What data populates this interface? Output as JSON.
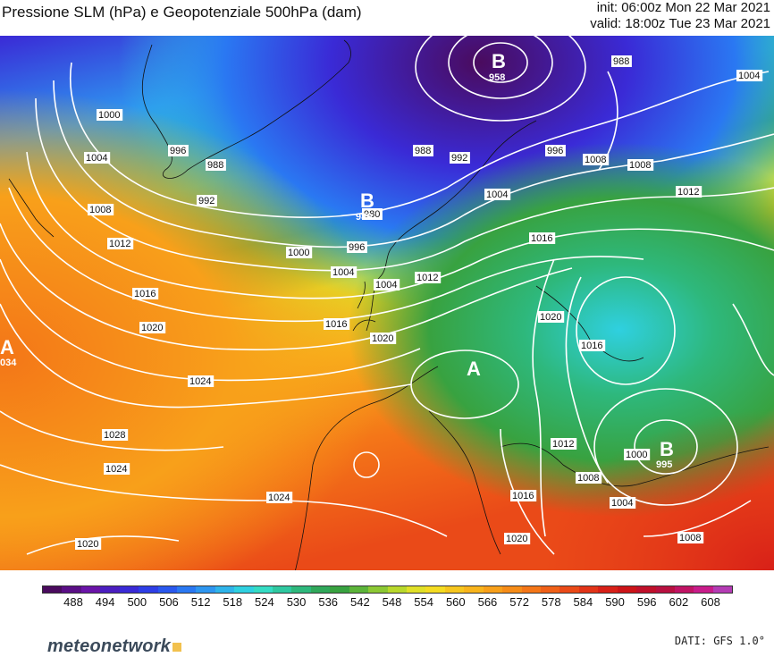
{
  "header": {
    "title": "Pressione SLM (hPa) e Geopotenziale 500hPa (dam)",
    "init": "init: 06:00z Mon 22 Mar 2021",
    "valid": "valid: 18:00z Tue 23 Mar 2021"
  },
  "colorbar": {
    "labels": [
      "488",
      "494",
      "500",
      "506",
      "512",
      "518",
      "524",
      "530",
      "536",
      "542",
      "548",
      "554",
      "560",
      "566",
      "572",
      "578",
      "584",
      "590",
      "596",
      "602",
      "608"
    ],
    "colors": [
      "#4a0b5e",
      "#5a0f86",
      "#6a14a8",
      "#4b1ec0",
      "#3a2ad6",
      "#2e3ee6",
      "#2a58ee",
      "#2a78f2",
      "#2e96f0",
      "#2fb4ea",
      "#2fd0e0",
      "#35dcc4",
      "#2fc8a0",
      "#2eb87c",
      "#30a85a",
      "#38a240",
      "#5cb43a",
      "#8cc834",
      "#b8d82c",
      "#e0e028",
      "#f4dc22",
      "#f6c61e",
      "#f8b41c",
      "#f8a01a",
      "#f68c18",
      "#f47618",
      "#f06018",
      "#ea4a18",
      "#e23418",
      "#d82018",
      "#cc1418",
      "#c0102a",
      "#b81040",
      "#c01464",
      "#c81c8a",
      "#b43cb4"
    ]
  },
  "map": {
    "centers": [
      {
        "letter": "B",
        "value": "958"
      },
      {
        "letter": "B",
        "value": "980"
      },
      {
        "letter": "A",
        "value": "034"
      },
      {
        "letter": "A",
        "value": ""
      },
      {
        "letter": "B",
        "value": "995"
      }
    ],
    "isobar_labels": [
      "1000",
      "1004",
      "1008",
      "1012",
      "1016",
      "1020",
      "1024",
      "1028",
      "1024",
      "1020",
      "992",
      "988",
      "996",
      "980",
      "988",
      "1004",
      "992",
      "996",
      "1000",
      "1004",
      "1012",
      "1016",
      "1020",
      "1024",
      "1016",
      "1020",
      "1004",
      "1008",
      "1012",
      "1016",
      "1012",
      "1008",
      "1000",
      "1004",
      "1008",
      "1016",
      "1020",
      "996",
      "1004",
      "988",
      "1008"
    ]
  },
  "brand": "meteonetwork",
  "source": "DATI: GFS 1.0°"
}
